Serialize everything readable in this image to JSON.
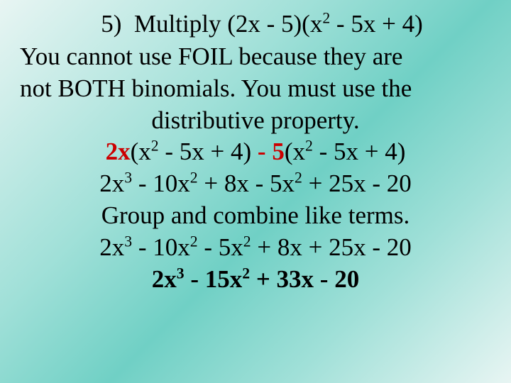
{
  "colors": {
    "text": "#000000",
    "accent": "#cc0000",
    "bg_gradient_start": "#e8f5f3",
    "bg_gradient_mid": "#70d0c5",
    "bg_gradient_end": "#e8f5f3"
  },
  "fonts": {
    "family": "Times New Roman",
    "base_size_pt": 26
  },
  "title": {
    "number": "5)",
    "label": "Multiply",
    "expr_before": "(2x - 5)(x",
    "expr_sup": "2",
    "expr_after": " - 5x + 4)"
  },
  "explain1_a": "You cannot use FOIL because they are",
  "explain1_b": "not BOTH binomials.  You must use the",
  "explain1_c": "distributive property.",
  "step1": {
    "p1_prefix": "2x",
    "p1_open": "(x",
    "p1_sup": "2",
    "p1_rest": " - 5x + 4)",
    "minus": " - ",
    "p2_prefix": "5",
    "p2_open": "(x",
    "p2_sup": "2",
    "p2_rest": " - 5x + 4)"
  },
  "step2": {
    "t1": "2x",
    "s1": "3",
    "t2": " - 10x",
    "s2": "2",
    "t3": " + 8x - 5x",
    "s3": "2",
    "t4": " + 25x - 20"
  },
  "explain2": "Group and combine like terms.",
  "step3": {
    "t1": "2x",
    "s1": "3",
    "t2": " - 10x",
    "s2": "2",
    "t3": " - 5x",
    "s3": "2",
    "t4": " + 8x + 25x - 20"
  },
  "answer": {
    "t1": "2x",
    "s1": "3",
    "t2": " - 15x",
    "s2": "2",
    "t3": " + 33x - 20"
  }
}
